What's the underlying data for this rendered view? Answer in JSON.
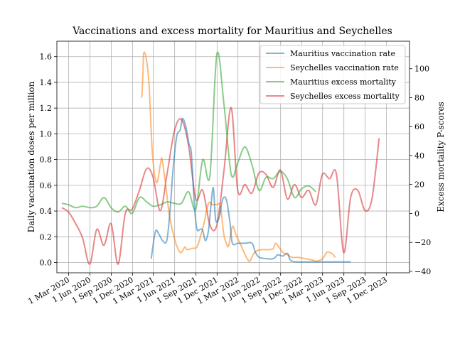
{
  "chart_data": {
    "type": "line",
    "title": "Vaccinations and excess mortality for Mauritius and Seychelles",
    "ylabel": "Daily vaccination doses per million",
    "ylabel_right": "Excess mortality P-scores",
    "grid": true,
    "legend_placement": "top-right",
    "xlim": [
      "2020-01-10",
      "2024-03-10"
    ],
    "ylim": [
      -0.08,
      1.72
    ],
    "ylim_right": [
      -41,
      119
    ],
    "x_ticks": [
      "2020-03-01",
      "2020-06-01",
      "2020-09-01",
      "2020-12-01",
      "2021-03-01",
      "2021-06-01",
      "2021-09-01",
      "2021-12-01",
      "2022-03-01",
      "2022-06-01",
      "2022-09-01",
      "2022-12-01",
      "2023-03-01",
      "2023-06-01",
      "2023-09-01",
      "2023-12-01"
    ],
    "x_tick_labels": [
      "1 Mar 2020",
      "1 Jun 2020",
      "1 Sep 2020",
      "1 Dec 2020",
      "1 Mar 2021",
      "1 Jun 2021",
      "1 Sep 2021",
      "1 Dec 2021",
      "1 Mar 2022",
      "1 Jun 2022",
      "1 Sep 2022",
      "1 Dec 2022",
      "1 Mar 2023",
      "1 Jun 2023",
      "1 Sep 2023",
      "1 Dec 2023"
    ],
    "y_ticks": [
      0.0,
      0.2,
      0.4,
      0.6,
      0.8,
      1.0,
      1.2,
      1.4,
      1.6
    ],
    "y_tick_labels": [
      "0.0",
      "0.2",
      "0.4",
      "0.6",
      "0.8",
      "1.0",
      "1.2",
      "1.4",
      "1.6"
    ],
    "y_ticks_right": [
      -40,
      -20,
      0,
      20,
      40,
      60,
      80,
      100
    ],
    "y_tick_labels_right": [
      "−40",
      "−20",
      "0",
      "20",
      "40",
      "60",
      "80",
      "100"
    ],
    "series": [
      {
        "name": "Mauritius vaccination rate",
        "axis": "left",
        "color": "#1f77b4",
        "points": [
          [
            "2021-02-20",
            0.03
          ],
          [
            "2021-03-10",
            0.24
          ],
          [
            "2021-03-25",
            0.22
          ],
          [
            "2021-04-10",
            0.17
          ],
          [
            "2021-04-28",
            0.17
          ],
          [
            "2021-05-12",
            0.4
          ],
          [
            "2021-05-25",
            0.72
          ],
          [
            "2021-06-10",
            0.98
          ],
          [
            "2021-06-25",
            1.03
          ],
          [
            "2021-07-05",
            1.12
          ],
          [
            "2021-07-20",
            1.05
          ],
          [
            "2021-08-02",
            0.92
          ],
          [
            "2021-08-12",
            0.85
          ],
          [
            "2021-08-25",
            0.45
          ],
          [
            "2021-09-05",
            0.26
          ],
          [
            "2021-09-20",
            0.26
          ],
          [
            "2021-09-30",
            0.25
          ],
          [
            "2021-10-12",
            0.17
          ],
          [
            "2021-10-25",
            0.25
          ],
          [
            "2021-11-05",
            0.45
          ],
          [
            "2021-11-15",
            0.58
          ],
          [
            "2021-11-25",
            0.33
          ],
          [
            "2021-12-10",
            0.35
          ],
          [
            "2021-12-25",
            0.49
          ],
          [
            "2022-01-10",
            0.49
          ],
          [
            "2022-01-25",
            0.32
          ],
          [
            "2022-02-05",
            0.15
          ],
          [
            "2022-03-01",
            0.15
          ],
          [
            "2022-04-01",
            0.15
          ],
          [
            "2022-05-01",
            0.15
          ],
          [
            "2022-05-15",
            0.08
          ],
          [
            "2022-06-01",
            0.04
          ],
          [
            "2022-07-01",
            0.03
          ],
          [
            "2022-08-01",
            0.03
          ],
          [
            "2022-08-20",
            0.06
          ],
          [
            "2022-09-10",
            0.05
          ],
          [
            "2022-10-01",
            0.07
          ],
          [
            "2022-10-20",
            0.01
          ],
          [
            "2023-01-01",
            0.005
          ],
          [
            "2023-04-01",
            0.005
          ],
          [
            "2023-06-01",
            0.005
          ],
          [
            "2023-07-01",
            0.005
          ]
        ]
      },
      {
        "name": "Seychelles vaccination rate",
        "axis": "left",
        "color": "#ff7f0e",
        "points": [
          [
            "2021-01-10",
            1.28
          ],
          [
            "2021-01-15",
            1.45
          ],
          [
            "2021-01-18",
            1.62
          ],
          [
            "2021-01-28",
            1.6
          ],
          [
            "2021-02-10",
            1.4
          ],
          [
            "2021-02-25",
            0.85
          ],
          [
            "2021-03-15",
            0.62
          ],
          [
            "2021-04-01",
            0.77
          ],
          [
            "2021-04-08",
            0.8
          ],
          [
            "2021-04-25",
            0.58
          ],
          [
            "2021-05-10",
            0.36
          ],
          [
            "2021-06-01",
            0.18
          ],
          [
            "2021-06-20",
            0.09
          ],
          [
            "2021-07-01",
            0.08
          ],
          [
            "2021-07-15",
            0.12
          ],
          [
            "2021-07-25",
            0.1
          ],
          [
            "2021-08-15",
            0.11
          ],
          [
            "2021-09-05",
            0.12
          ],
          [
            "2021-09-20",
            0.2
          ],
          [
            "2021-10-05",
            0.3
          ],
          [
            "2021-10-25",
            0.46
          ],
          [
            "2021-11-10",
            0.45
          ],
          [
            "2021-12-01",
            0.45
          ],
          [
            "2021-12-15",
            0.44
          ],
          [
            "2021-12-30",
            0.22
          ],
          [
            "2022-01-10",
            0.15
          ],
          [
            "2022-01-20",
            0.13
          ],
          [
            "2022-02-05",
            0.28
          ],
          [
            "2022-02-20",
            0.22
          ],
          [
            "2022-03-10",
            0.15
          ],
          [
            "2022-04-01",
            0.06
          ],
          [
            "2022-04-20",
            0.01
          ],
          [
            "2022-05-05",
            0.06
          ],
          [
            "2022-05-20",
            0.09
          ],
          [
            "2022-06-15",
            0.1
          ],
          [
            "2022-07-15",
            0.1
          ],
          [
            "2022-08-01",
            0.11
          ],
          [
            "2022-08-10",
            0.15
          ],
          [
            "2022-08-25",
            0.12
          ],
          [
            "2022-09-10",
            0.08
          ],
          [
            "2022-10-01",
            0.06
          ],
          [
            "2022-10-20",
            0.04
          ],
          [
            "2022-11-15",
            0.04
          ],
          [
            "2022-12-15",
            0.03
          ],
          [
            "2023-01-15",
            0.02
          ],
          [
            "2023-02-01",
            0.01
          ],
          [
            "2023-03-01",
            0.03
          ],
          [
            "2023-03-20",
            0.08
          ],
          [
            "2023-04-10",
            0.07
          ],
          [
            "2023-04-25",
            0.04
          ]
        ]
      },
      {
        "name": "Mauritius excess mortality",
        "axis": "right",
        "color": "#2ca02c",
        "points": [
          [
            "2020-01-31",
            7
          ],
          [
            "2020-02-29",
            6
          ],
          [
            "2020-03-31",
            4
          ],
          [
            "2020-04-30",
            5
          ],
          [
            "2020-05-31",
            4
          ],
          [
            "2020-06-30",
            5
          ],
          [
            "2020-07-31",
            11
          ],
          [
            "2020-08-31",
            4
          ],
          [
            "2020-09-30",
            1
          ],
          [
            "2020-10-31",
            5
          ],
          [
            "2020-11-30",
            0
          ],
          [
            "2020-12-31",
            11
          ],
          [
            "2021-01-31",
            8
          ],
          [
            "2021-02-28",
            5
          ],
          [
            "2021-03-31",
            6
          ],
          [
            "2021-04-30",
            8
          ],
          [
            "2021-05-31",
            7
          ],
          [
            "2021-06-30",
            7
          ],
          [
            "2021-07-31",
            15
          ],
          [
            "2021-08-31",
            3
          ],
          [
            "2021-09-30",
            37
          ],
          [
            "2021-10-31",
            26
          ],
          [
            "2021-11-30",
            110
          ],
          [
            "2021-12-31",
            75
          ],
          [
            "2022-01-31",
            27
          ],
          [
            "2022-02-28",
            35
          ],
          [
            "2022-03-31",
            46
          ],
          [
            "2022-04-30",
            34
          ],
          [
            "2022-05-31",
            16
          ],
          [
            "2022-06-30",
            25
          ],
          [
            "2022-07-31",
            24
          ],
          [
            "2022-08-31",
            29
          ],
          [
            "2022-09-30",
            24
          ],
          [
            "2022-10-31",
            11
          ],
          [
            "2022-11-30",
            17
          ],
          [
            "2022-12-31",
            19
          ],
          [
            "2023-01-31",
            15
          ]
        ]
      },
      {
        "name": "Seychelles excess mortality",
        "axis": "right",
        "color": "#d62728",
        "points": [
          [
            "2020-01-31",
            4
          ],
          [
            "2020-02-29",
            1
          ],
          [
            "2020-03-31",
            -7
          ],
          [
            "2020-04-30",
            -17
          ],
          [
            "2020-05-31",
            -35
          ],
          [
            "2020-06-30",
            -11
          ],
          [
            "2020-07-31",
            -22
          ],
          [
            "2020-08-31",
            -7
          ],
          [
            "2020-09-30",
            -35
          ],
          [
            "2020-10-31",
            0
          ],
          [
            "2020-11-30",
            3
          ],
          [
            "2020-12-31",
            16
          ],
          [
            "2021-01-31",
            31
          ],
          [
            "2021-02-28",
            25
          ],
          [
            "2021-03-31",
            2
          ],
          [
            "2021-04-30",
            28
          ],
          [
            "2021-05-31",
            57
          ],
          [
            "2021-06-30",
            65
          ],
          [
            "2021-07-31",
            47
          ],
          [
            "2021-08-31",
            10
          ],
          [
            "2021-09-30",
            16
          ],
          [
            "2021-10-31",
            -8
          ],
          [
            "2021-11-30",
            -8
          ],
          [
            "2021-12-31",
            30
          ],
          [
            "2022-01-31",
            73
          ],
          [
            "2022-02-28",
            16
          ],
          [
            "2022-03-31",
            20
          ],
          [
            "2022-04-30",
            14
          ],
          [
            "2022-05-31",
            28
          ],
          [
            "2022-06-30",
            27
          ],
          [
            "2022-07-31",
            18
          ],
          [
            "2022-08-31",
            30
          ],
          [
            "2022-09-30",
            10
          ],
          [
            "2022-10-31",
            20
          ],
          [
            "2022-11-30",
            11
          ],
          [
            "2022-12-31",
            16
          ],
          [
            "2023-01-31",
            6
          ],
          [
            "2023-02-28",
            27
          ],
          [
            "2023-03-31",
            24
          ],
          [
            "2023-04-30",
            27
          ],
          [
            "2023-05-31",
            -27
          ],
          [
            "2023-06-30",
            11
          ],
          [
            "2023-07-31",
            16
          ],
          [
            "2023-08-31",
            2
          ],
          [
            "2023-09-30",
            10
          ],
          [
            "2023-10-31",
            52
          ]
        ]
      }
    ]
  }
}
